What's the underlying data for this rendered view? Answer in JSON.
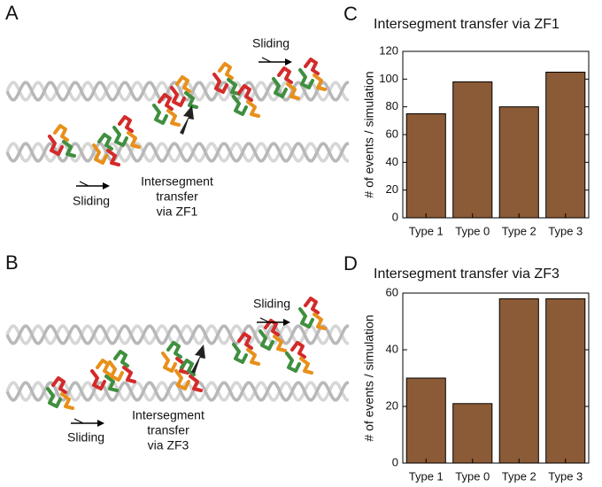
{
  "panel_a": {
    "label": "A",
    "sliding_top": "Sliding",
    "sliding_bottom": "Sliding",
    "transfer": [
      "Intersegment",
      "transfer",
      "via ZF1"
    ]
  },
  "panel_b": {
    "label": "B",
    "sliding_top": "Sliding",
    "sliding_bottom": "Sliding",
    "transfer": [
      "Intersegment",
      "transfer",
      "via ZF3"
    ]
  },
  "chart_data": [
    {
      "type": "bar",
      "panel": "C",
      "title": "Intersegment transfer via ZF1",
      "ylabel": "# of events / simulation",
      "categories": [
        "Type 1",
        "Type 0",
        "Type 2",
        "Type 3"
      ],
      "values": [
        75,
        98,
        80,
        105
      ],
      "color": "#8b5a36",
      "ylim": [
        0,
        120
      ],
      "yticks": [
        0,
        20,
        40,
        60,
        80,
        100,
        120
      ]
    },
    {
      "type": "bar",
      "panel": "D",
      "title": "Intersegment transfer via ZF3",
      "ylabel": "# of events / simulation",
      "categories": [
        "Type 1",
        "Type 0",
        "Type 2",
        "Type 3"
      ],
      "values": [
        30,
        21,
        58,
        58
      ],
      "color": "#8b5a36",
      "ylim": [
        0,
        60
      ],
      "yticks": [
        0,
        20,
        40,
        60
      ]
    }
  ]
}
